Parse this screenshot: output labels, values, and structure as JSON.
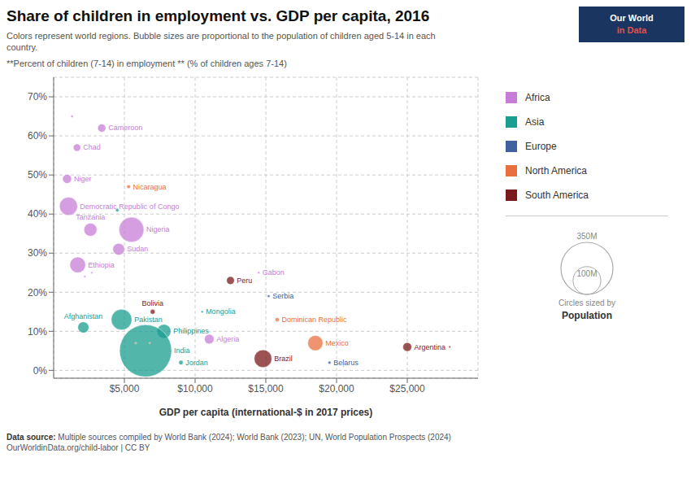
{
  "chart_data": {
    "type": "scatter",
    "title": "Share of children in employment vs. GDP per capita, 2016",
    "subtitle": [
      "Colors represent world regions. Bubble sizes are proportional to the population of children aged 5-14 in each",
      "country."
    ],
    "y_label": "**Percent of children (7-14) in employment ** (% of children ages 7-14)",
    "x_label": "GDP per capita (international-$ in 2017 prices)",
    "source": [
      "Data source:",
      " Multiple sources compiled by World Bank (2024); World Bank (2023); UN, World Population Prospects (2024)\nOurWorldinData.org/child-labor | CC BY"
    ],
    "logo": [
      "Our World",
      "in Data"
    ],
    "xlim": [
      0,
      30000
    ],
    "ylim": [
      -2,
      75
    ],
    "xticks": [
      {
        "value": 5000,
        "label": "$5,000"
      },
      {
        "value": 10000,
        "label": "$10,000"
      },
      {
        "value": 15000,
        "label": "$15,000"
      },
      {
        "value": 20000,
        "label": "$20,000"
      },
      {
        "value": 25000,
        "label": "$25,000"
      }
    ],
    "yticks": [
      {
        "value": 0,
        "label": "0%"
      },
      {
        "value": 10,
        "label": "10%"
      },
      {
        "value": 20,
        "label": "20%"
      },
      {
        "value": 30,
        "label": "30%"
      },
      {
        "value": 40,
        "label": "40%"
      },
      {
        "value": 50,
        "label": "50%"
      },
      {
        "value": 60,
        "label": "60%"
      },
      {
        "value": 70,
        "label": "70%"
      }
    ],
    "grid": true,
    "size_legend": {
      "title": [
        "Circles sized by",
        "Population"
      ],
      "values": [
        100000000,
        350000000
      ],
      "labels": [
        "100M",
        "350M"
      ]
    },
    "series": [
      {
        "name": "Africa",
        "color": "#C77DD7",
        "x": [
          3400,
          1650,
          950,
          1050,
          2600,
          5500,
          4600,
          1700,
          14500,
          11000,
          1300,
          2200,
          2700
        ],
        "values": [
          62,
          57,
          49,
          42,
          36,
          36,
          31,
          27,
          25,
          8,
          65,
          24,
          25
        ],
        "sizes": [
          8500000,
          7000000,
          10500000,
          42000000,
          22000000,
          80000000,
          18000000,
          32000000,
          650000,
          12000000,
          800000,
          600000,
          500000
        ],
        "labels": [
          "Cameroon",
          "Chad",
          "Niger",
          "Democratic Republic of Congo",
          "Tanzania",
          "Nigeria",
          "Sudan",
          "Ethiopia",
          "Gabon",
          "Algeria",
          null,
          null,
          null
        ]
      },
      {
        "name": "Asia",
        "color": "#1A9E8F",
        "x": [
          4800,
          10500,
          2100,
          7800,
          6500,
          9000,
          4500
        ],
        "values": [
          13,
          15,
          11,
          10,
          5,
          2,
          41
        ],
        "sizes": [
          55000000,
          700000,
          16000000,
          25000000,
          350000000,
          2500000,
          1500000
        ],
        "labels": [
          "Pakistan",
          "Mongolia",
          "Afghanistan",
          "Philippines",
          "India",
          "Jordan",
          null
        ]
      },
      {
        "name": "Europe",
        "color": "#4060A0",
        "x": [
          15200,
          19500,
          20500
        ],
        "values": [
          19,
          2,
          1
        ],
        "sizes": [
          1000000,
          1200000,
          200000
        ],
        "labels": [
          "Serbia",
          "Belarus",
          null
        ]
      },
      {
        "name": "North America",
        "color": "#E87040",
        "x": [
          5300,
          15800,
          18500,
          5800,
          6800
        ],
        "values": [
          47,
          13,
          7,
          7,
          7
        ],
        "sizes": [
          1800000,
          2200000,
          30000000,
          400000,
          300000
        ],
        "labels": [
          "Nicaragua",
          "Dominican Republic",
          "Mexico",
          null,
          null
        ]
      },
      {
        "name": "South America",
        "color": "#7B1A1A",
        "x": [
          12500,
          7000,
          14800,
          25000,
          28000
        ],
        "values": [
          23,
          15,
          3,
          6,
          6
        ],
        "sizes": [
          8000000,
          3000000,
          40000000,
          10000000,
          500000
        ],
        "labels": [
          "Peru",
          "Bolivia",
          "Brazil",
          "Argentina",
          null
        ]
      }
    ]
  }
}
